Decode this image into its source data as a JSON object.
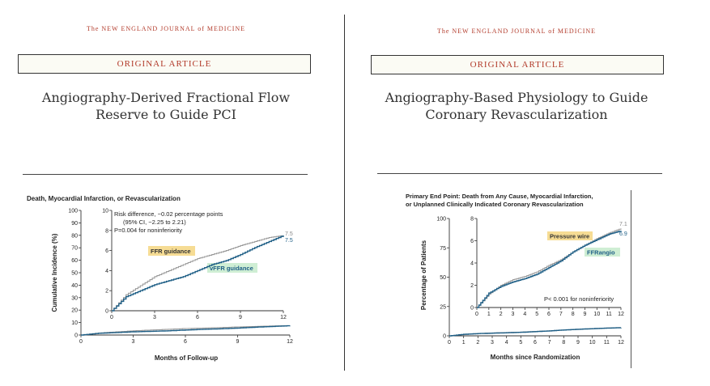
{
  "left": {
    "journal": "The NEW ENGLAND JOURNAL of MEDICINE",
    "article_type": "ORIGINAL ARTICLE",
    "title_lines": [
      "Angiography-Derived Fractional Flow",
      "Reserve to Guide PCI"
    ],
    "chart_title": "Death, Myocardial Infarction, or Revascularization",
    "ylabel": "Cumulative Incidence (%)",
    "xlabel": "Months of Follow-up",
    "inset_annotation": [
      "Risk difference, −0.02 percentage points",
      "(95% CI, −2.25 to 2.21)",
      "P=0.004 for noninferiority"
    ],
    "series_labels": [
      "FFR guidance",
      "vFFR guidance"
    ],
    "end_labels": [
      "7.5",
      "7.5"
    ]
  },
  "right": {
    "journal": "The NEW ENGLAND JOURNAL of MEDICINE",
    "article_type": "ORIGINAL ARTICLE",
    "title_lines": [
      "Angiography-Based Physiology to Guide",
      "Coronary Revascularization"
    ],
    "chart_title_lines": [
      "Primary End Point: Death from Any Cause, Myocardial Infarction,",
      "or Unplanned Clinically Indicated Coronary Revascularization"
    ],
    "ylabel": "Percentage of Patients",
    "xlabel": "Months since Randomization",
    "inset_annotation": "P< 0.001 for noninferiority",
    "series_labels": [
      "Pressure wire",
      "FFRangio"
    ],
    "end_labels": [
      "7.1",
      "6.9"
    ]
  },
  "colors": {
    "reference": "#9a9a9a",
    "test": "#1f5f86",
    "accent_red": "#b23a2a",
    "ffr_highlight": "#f6dc94",
    "vffr_highlight": "#cfeed4"
  },
  "chart_data": [
    {
      "type": "line",
      "title": "Death, Myocardial Infarction, or Revascularization",
      "xlabel": "Months of Follow-up",
      "ylabel": "Cumulative Incidence (%)",
      "xlim": [
        0,
        12
      ],
      "ylim": [
        0,
        100
      ],
      "xticks": [
        0,
        3,
        6,
        9,
        12
      ],
      "yticks": [
        0,
        10,
        20,
        30,
        40,
        50,
        60,
        70,
        80,
        90,
        100
      ],
      "series": [
        {
          "name": "FFR guidance",
          "x": [
            0,
            1,
            2,
            3,
            4,
            5,
            6,
            7,
            8,
            9,
            10,
            11,
            12
          ],
          "y": [
            0,
            1.6,
            2.5,
            3.4,
            4.0,
            4.6,
            5.2,
            5.6,
            6.0,
            6.5,
            6.9,
            7.3,
            7.5
          ]
        },
        {
          "name": "vFFR guidance",
          "x": [
            0,
            1,
            2,
            3,
            4,
            5,
            6,
            7,
            8,
            9,
            10,
            11,
            12
          ],
          "y": [
            0,
            1.4,
            2.0,
            2.6,
            3.0,
            3.4,
            4.0,
            4.6,
            5.0,
            5.6,
            6.3,
            6.9,
            7.5
          ]
        }
      ],
      "inset": {
        "xlim": [
          0,
          12
        ],
        "ylim": [
          0,
          10
        ],
        "xticks": [
          0,
          3,
          6,
          9,
          12
        ],
        "yticks": [
          0,
          2,
          4,
          6,
          8,
          10
        ]
      }
    },
    {
      "type": "line",
      "title": "Primary End Point: Death from Any Cause, Myocardial Infarction, or Unplanned Clinically Indicated Coronary Revascularization",
      "xlabel": "Months since Randomization",
      "ylabel": "Percentage of Patients",
      "xlim": [
        0,
        12
      ],
      "ylim": [
        0,
        100
      ],
      "xticks": [
        0,
        1,
        2,
        3,
        4,
        5,
        6,
        7,
        8,
        9,
        10,
        11,
        12
      ],
      "yticks": [
        0,
        25,
        50,
        75,
        100
      ],
      "series": [
        {
          "name": "Pressure wire",
          "x": [
            0,
            1,
            2,
            3,
            4,
            5,
            6,
            7,
            8,
            9,
            10,
            11,
            12
          ],
          "y": [
            0,
            1.2,
            2.0,
            2.5,
            2.8,
            3.2,
            3.8,
            4.3,
            5.0,
            5.6,
            6.2,
            6.7,
            7.1
          ]
        },
        {
          "name": "FFRangio",
          "x": [
            0,
            1,
            2,
            3,
            4,
            5,
            6,
            7,
            8,
            9,
            10,
            11,
            12
          ],
          "y": [
            0,
            1.3,
            1.9,
            2.3,
            2.6,
            3.0,
            3.6,
            4.2,
            5.0,
            5.6,
            6.1,
            6.6,
            6.9
          ]
        }
      ],
      "inset": {
        "xlim": [
          0,
          12
        ],
        "ylim": [
          0,
          8
        ],
        "xticks": [
          0,
          1,
          2,
          3,
          4,
          5,
          6,
          7,
          8,
          9,
          10,
          11,
          12
        ],
        "yticks": [
          0,
          2,
          4,
          6,
          8
        ]
      }
    }
  ]
}
